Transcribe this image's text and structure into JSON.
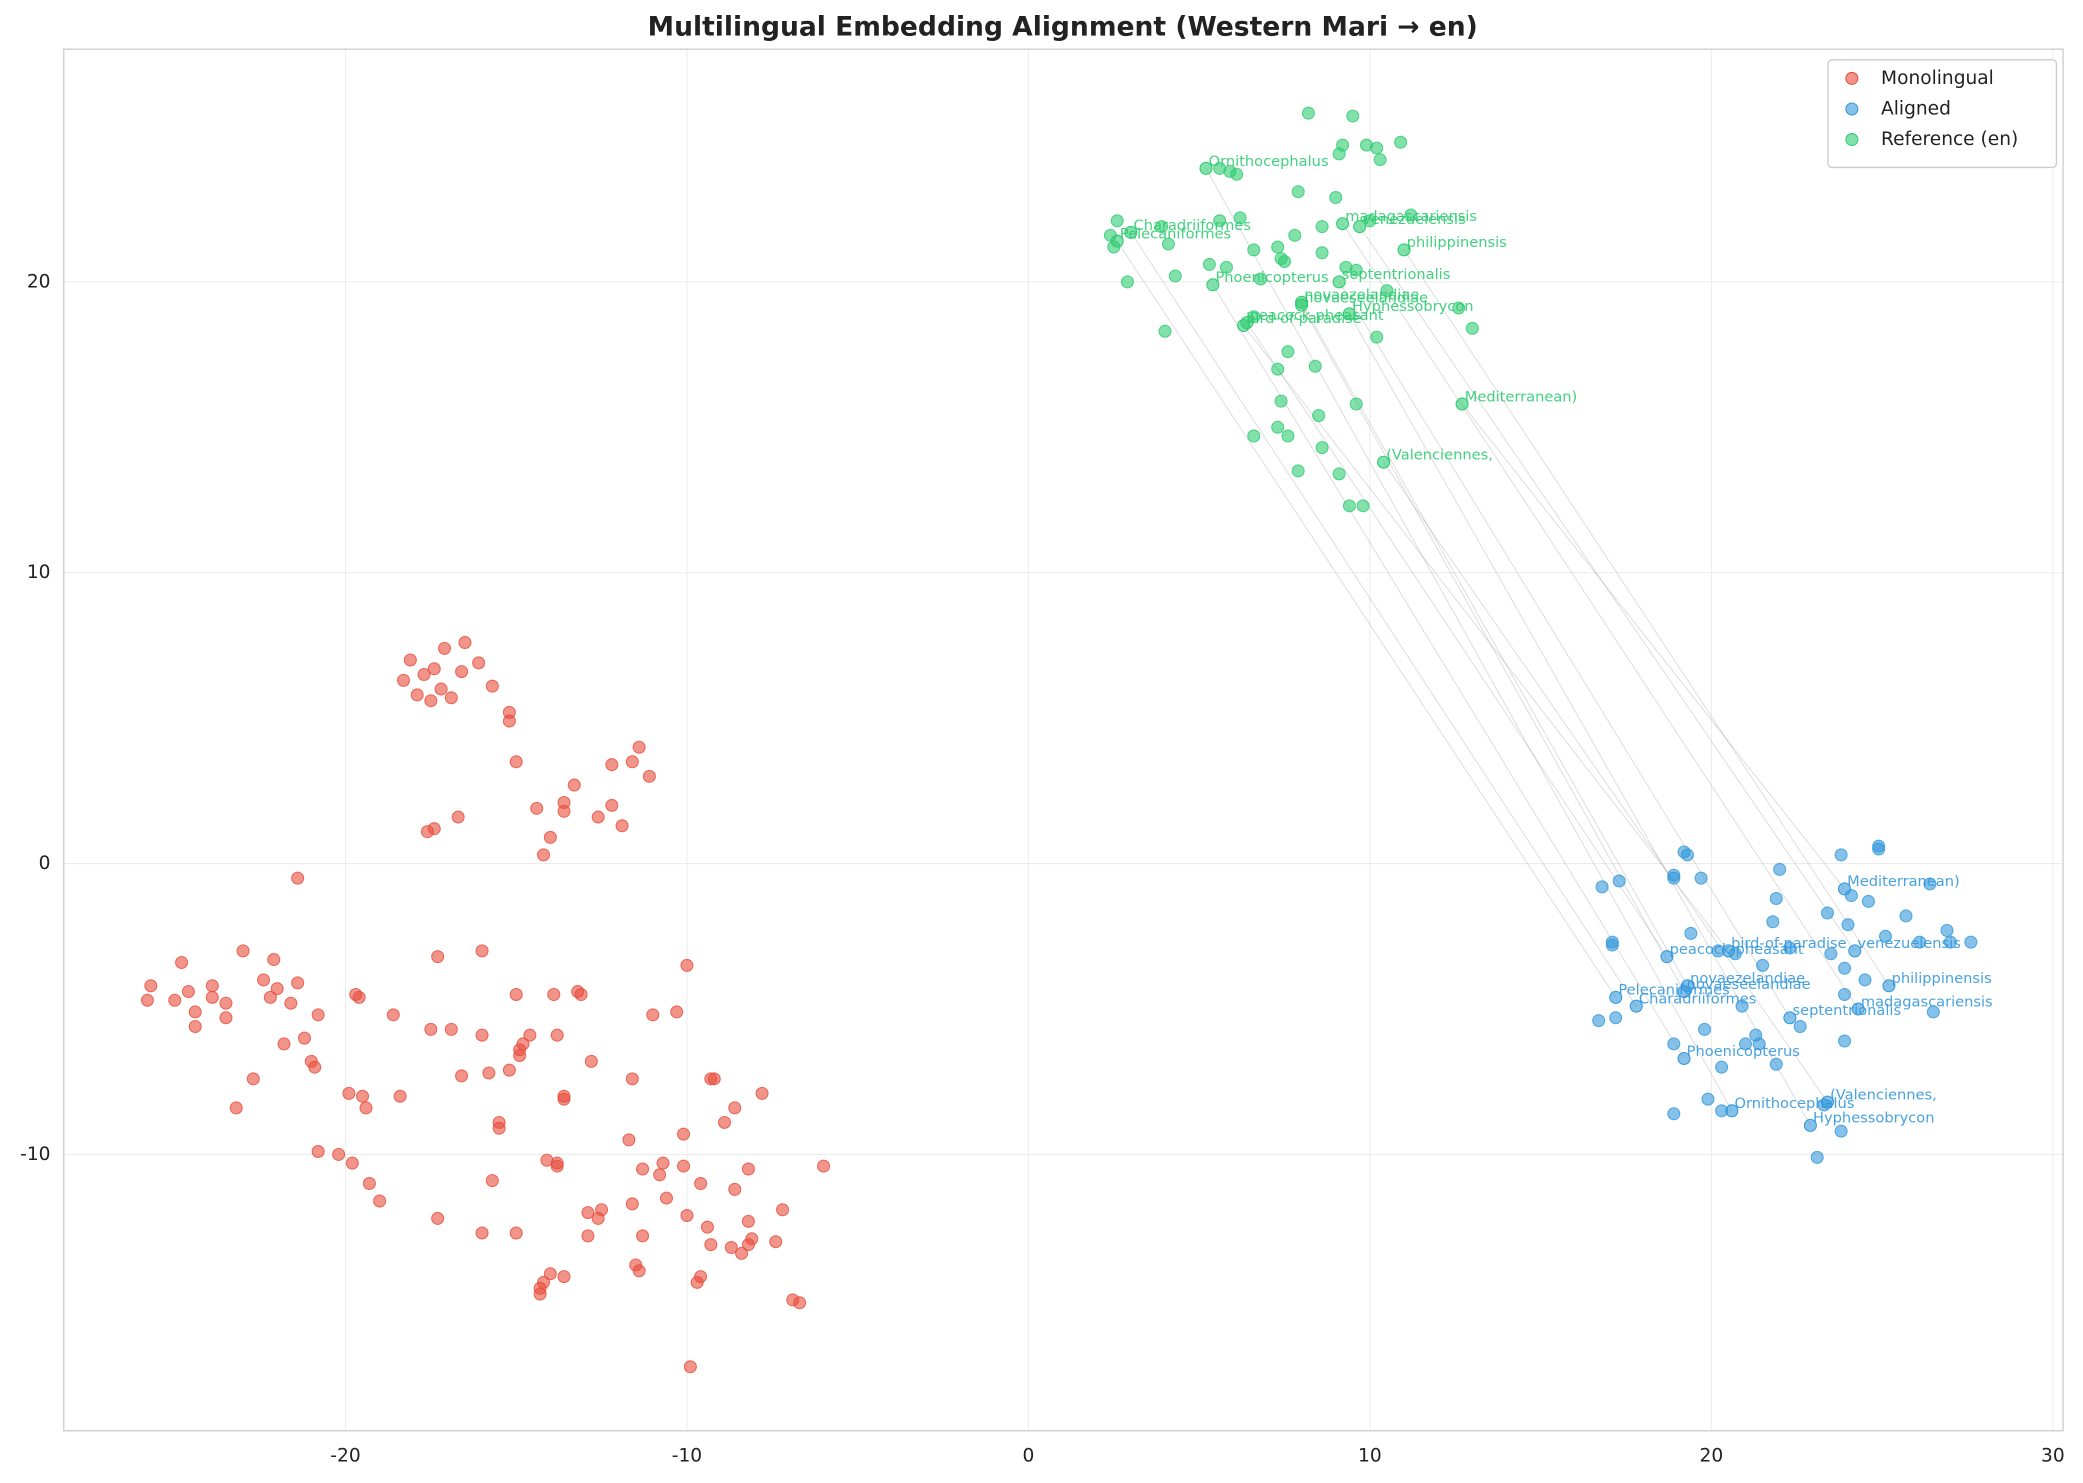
{
  "chart_data": {
    "type": "scatter",
    "title": "Multilingual Embedding Alignment (Western Mari → en)",
    "xlim": [
      -28.25,
      30.3
    ],
    "ylim": [
      -19.5,
      28.0
    ],
    "xticks": [
      -20,
      -10,
      0,
      10,
      20,
      30
    ],
    "yticks": [
      -10,
      0,
      10,
      20
    ],
    "grid": true,
    "legend": "upper right",
    "series": [
      {
        "name": "Monolingual",
        "color": "#e74c3c",
        "x": [
          -18.3,
          -18.1,
          -17.9,
          -17.7,
          -17.5,
          -17.4,
          -17.2,
          -17.1,
          -16.9,
          -16.6,
          -16.5,
          -16.1,
          -15.7,
          -15.2,
          -15.2,
          -15.0,
          -17.4,
          -17.6,
          -16.7,
          -14.4,
          -14.0,
          -14.2,
          -13.6,
          -13.6,
          -13.3,
          -12.6,
          -12.2,
          -12.2,
          -11.9,
          -11.6,
          -11.4,
          -11.1,
          -21.4,
          -25.8,
          -25.7,
          -25.0,
          -24.8,
          -24.6,
          -24.4,
          -24.4,
          -23.9,
          -23.9,
          -23.5,
          -23.5,
          -23.2,
          -23.0,
          -22.7,
          -22.4,
          -22.2,
          -22.1,
          -22.0,
          -21.8,
          -21.6,
          -21.4,
          -21.2,
          -21.0,
          -20.9,
          -20.8,
          -20.8,
          -20.2,
          -19.9,
          -19.8,
          -19.7,
          -19.6,
          -19.5,
          -19.4,
          -19.3,
          -19.0,
          -18.6,
          -18.4,
          -17.3,
          -17.5,
          -16.9,
          -16.6,
          -17.3,
          -16.0,
          -16.0,
          -15.8,
          -15.7,
          -15.5,
          -15.5,
          -15.2,
          -15.0,
          -14.9,
          -14.9,
          -14.8,
          -14.6,
          -16.0,
          -15.0,
          -14.1,
          -13.9,
          -13.8,
          -13.6,
          -13.6,
          -13.8,
          -13.8,
          -14.0,
          -13.6,
          -14.2,
          -14.3,
          -14.3,
          -13.2,
          -13.1,
          -12.8,
          -12.9,
          -12.6,
          -12.9,
          -12.5,
          -11.7,
          -11.6,
          -11.6,
          -11.5,
          -11.4,
          -11.3,
          -11.3,
          -11.0,
          -10.8,
          -10.7,
          -10.6,
          -10.3,
          -10.0,
          -10.1,
          -10.1,
          -10.0,
          -9.9,
          -9.7,
          -9.6,
          -9.6,
          -9.4,
          -9.3,
          -9.3,
          -9.2,
          -8.9,
          -8.7,
          -8.6,
          -8.6,
          -8.4,
          -8.2,
          -8.2,
          -8.2,
          -8.1,
          -7.8,
          -7.4,
          -7.2,
          -6.9,
          -6.7,
          -6.0
        ],
        "y": [
          6.3,
          7.0,
          5.8,
          6.5,
          5.6,
          6.7,
          6.0,
          7.4,
          5.7,
          6.6,
          7.6,
          6.9,
          6.1,
          5.2,
          4.9,
          3.5,
          1.2,
          1.1,
          1.6,
          1.9,
          0.9,
          0.3,
          2.1,
          1.8,
          2.7,
          1.6,
          3.4,
          2.0,
          1.3,
          3.5,
          4.0,
          3.0,
          -0.5,
          -4.7,
          -4.2,
          -4.7,
          -3.4,
          -4.4,
          -5.1,
          -5.6,
          -4.2,
          -4.6,
          -4.8,
          -5.3,
          -8.4,
          -3.0,
          -7.4,
          -4.0,
          -4.6,
          -3.3,
          -4.3,
          -6.2,
          -4.8,
          -4.1,
          -6.0,
          -6.8,
          -7.0,
          -5.2,
          -9.9,
          -10.0,
          -7.9,
          -10.3,
          -4.5,
          -4.6,
          -8.0,
          -8.4,
          -11.0,
          -11.6,
          -5.2,
          -8.0,
          -3.2,
          -5.7,
          -5.7,
          -7.3,
          -12.2,
          -3.0,
          -5.9,
          -7.2,
          -10.9,
          -8.9,
          -9.1,
          -7.1,
          -4.5,
          -6.4,
          -6.6,
          -6.2,
          -5.9,
          -12.7,
          -12.7,
          -10.2,
          -4.5,
          -5.9,
          -8.1,
          -8.0,
          -10.3,
          -10.4,
          -14.1,
          -14.2,
          -14.4,
          -14.6,
          -14.8,
          -4.4,
          -4.5,
          -6.8,
          -12.0,
          -12.2,
          -12.8,
          -11.9,
          -9.5,
          -7.4,
          -11.7,
          -13.8,
          -14.0,
          -10.5,
          -12.8,
          -5.2,
          -10.7,
          -10.3,
          -11.5,
          -5.1,
          -3.5,
          -9.3,
          -10.4,
          -12.1,
          -17.3,
          -14.4,
          -11.0,
          -14.2,
          -12.5,
          -13.1,
          -7.4,
          -7.4,
          -8.9,
          -13.2,
          -11.2,
          -8.4,
          -13.4,
          -13.1,
          -12.3,
          -10.5,
          -12.9,
          -7.9,
          -13.0,
          -11.9,
          -15.0,
          -15.1,
          -10.4
        ]
      },
      {
        "name": "Aligned",
        "color": "#3498db",
        "x": [
          16.8,
          17.1,
          17.1,
          17.3,
          16.7,
          17.2,
          18.9,
          18.9,
          19.2,
          19.3,
          19.7,
          19.4,
          18.9,
          18.9,
          19.8,
          20.2,
          20.3,
          20.7,
          20.9,
          21.0,
          21.3,
          21.4,
          21.5,
          21.8,
          21.9,
          22.0,
          21.9,
          22.3,
          22.6,
          23.1,
          23.4,
          23.5,
          23.8,
          24.0,
          23.9,
          23.9,
          23.9,
          24.1,
          24.5,
          24.6,
          24.9,
          24.9,
          25.1,
          25.7,
          26.1,
          26.4,
          26.5,
          26.9,
          27.0,
          27.6,
          23.3,
          23.8,
          19.9,
          20.3
        ],
        "y": [
          -0.8,
          -2.7,
          -2.8,
          -0.6,
          -5.4,
          -5.3,
          -0.4,
          -0.5,
          0.4,
          0.3,
          -0.5,
          -2.4,
          -6.2,
          -8.6,
          -5.7,
          -3.0,
          -7.0,
          -3.1,
          -4.9,
          -6.2,
          -5.9,
          -6.2,
          -3.5,
          -2.0,
          -1.2,
          -0.2,
          -6.9,
          -2.9,
          -5.6,
          -10.1,
          -1.7,
          -3.1,
          0.3,
          -2.1,
          -3.6,
          -4.5,
          -6.1,
          -1.1,
          -4.0,
          -1.3,
          0.6,
          0.5,
          -2.5,
          -1.8,
          -2.7,
          -0.7,
          -5.1,
          -2.3,
          -2.7,
          -2.7,
          -8.3,
          -9.2,
          -8.1,
          -8.5
        ]
      },
      {
        "name": "Reference (en)",
        "color": "#2ecc71",
        "x": [
          8.2,
          9.5,
          9.2,
          9.1,
          9.9,
          10.2,
          10.3,
          10.9,
          5.6,
          5.9,
          6.1,
          7.9,
          9.0,
          2.6,
          3.9,
          5.6,
          6.2,
          8.6,
          10.0,
          11.2,
          2.4,
          2.5,
          4.1,
          6.6,
          7.3,
          7.8,
          8.6,
          7.5,
          7.4,
          5.3,
          5.8,
          9.3,
          9.6,
          2.9,
          4.3,
          6.8,
          10.5,
          12.6,
          13.0,
          6.6,
          10.2,
          4.0,
          7.6,
          7.3,
          8.4,
          7.4,
          9.6,
          8.5,
          7.3,
          6.6,
          7.6,
          8.6,
          7.9,
          9.1,
          9.4,
          9.8
        ],
        "y": [
          25.8,
          25.7,
          24.7,
          24.4,
          24.7,
          24.6,
          24.2,
          24.8,
          23.9,
          23.8,
          23.7,
          23.1,
          22.9,
          22.1,
          21.9,
          22.1,
          22.2,
          21.9,
          22.1,
          22.3,
          21.6,
          21.2,
          21.3,
          21.1,
          21.2,
          21.6,
          21.0,
          20.7,
          20.8,
          20.6,
          20.5,
          20.5,
          20.4,
          20.0,
          20.2,
          20.1,
          19.7,
          19.1,
          18.4,
          18.8,
          18.1,
          18.3,
          17.6,
          17.0,
          17.1,
          15.9,
          15.8,
          15.4,
          15.0,
          14.7,
          14.7,
          14.3,
          13.5,
          13.4,
          12.3,
          12.3
        ]
      }
    ],
    "pairs": [
      {
        "label": "Mediterranean)",
        "aligned_x": 23.9,
        "aligned_y": -0.87,
        "reference_x": 12.7,
        "reference_y": 15.8
      },
      {
        "label": "(Valenciennes,",
        "aligned_x": 23.4,
        "aligned_y": -8.2,
        "reference_x": 10.4,
        "reference_y": 13.8
      },
      {
        "label": "Hyphessobrycon",
        "aligned_x": 22.9,
        "aligned_y": -9.0,
        "reference_x": 9.4,
        "reference_y": 18.9
      },
      {
        "label": "Ornithocephalus",
        "aligned_x": 20.6,
        "aligned_y": -8.5,
        "reference_x": 5.2,
        "reference_y": 23.9
      },
      {
        "label": "philippinensis",
        "aligned_x": 25.2,
        "aligned_y": -4.2,
        "reference_x": 11.0,
        "reference_y": 21.1
      },
      {
        "label": "madagascariensis",
        "aligned_x": 24.3,
        "aligned_y": -5.0,
        "reference_x": 9.2,
        "reference_y": 22.0
      },
      {
        "label": "venezuelensis",
        "aligned_x": 24.2,
        "aligned_y": -3.0,
        "reference_x": 9.7,
        "reference_y": 21.9
      },
      {
        "label": "bird-of-paradise",
        "aligned_x": 20.5,
        "aligned_y": -3.0,
        "reference_x": 6.3,
        "reference_y": 18.5
      },
      {
        "label": "peacock-pheasant",
        "aligned_x": 18.7,
        "aligned_y": -3.2,
        "reference_x": 6.4,
        "reference_y": 18.6
      },
      {
        "label": "novaezelandiae",
        "aligned_x": 19.3,
        "aligned_y": -4.2,
        "reference_x": 8.0,
        "reference_y": 19.3
      },
      {
        "label": "novaeseelandiae",
        "aligned_x": 19.2,
        "aligned_y": -4.4,
        "reference_x": 8.0,
        "reference_y": 19.2
      },
      {
        "label": "septentrionalis",
        "aligned_x": 22.3,
        "aligned_y": -5.3,
        "reference_x": 9.1,
        "reference_y": 20.0
      },
      {
        "label": "Charadriiformes",
        "aligned_x": 17.8,
        "aligned_y": -4.9,
        "reference_x": 3.0,
        "reference_y": 21.7
      },
      {
        "label": "Pelecaniformes",
        "aligned_x": 17.2,
        "aligned_y": -4.6,
        "reference_x": 2.6,
        "reference_y": 21.4
      },
      {
        "label": "Phoenicopterus",
        "aligned_x": 19.2,
        "aligned_y": -6.7,
        "reference_x": 5.4,
        "reference_y": 19.9
      }
    ]
  }
}
